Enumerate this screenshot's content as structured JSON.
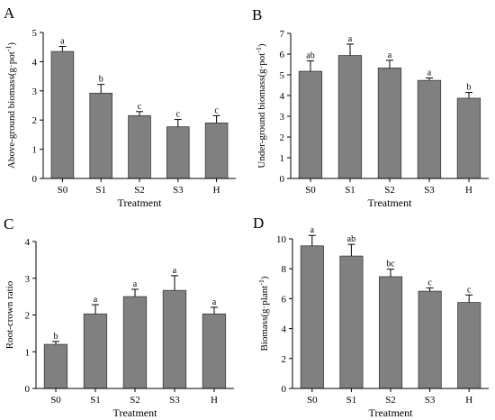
{
  "figure": {
    "bar_color": "#808080",
    "bar_stroke": "#3c3c3c",
    "axis_color": "#000000"
  },
  "chart_data": [
    {
      "panel": "A",
      "type": "bar",
      "categories": [
        "S0",
        "S1",
        "S2",
        "S3",
        "H"
      ],
      "values": [
        4.35,
        2.92,
        2.15,
        1.77,
        1.9
      ],
      "errors": [
        0.17,
        0.3,
        0.14,
        0.25,
        0.25
      ],
      "significance": [
        "a",
        "b",
        "c",
        "c",
        "c"
      ],
      "xlabel": "Treatment",
      "ylabel": "Above-ground biomass(g·pot",
      "ylabel_sup": "-1",
      "ylabel_tail": ")",
      "ylim": [
        0,
        5
      ],
      "yticks": [
        0,
        1,
        2,
        3,
        4,
        5
      ],
      "ytick_labels": [
        "0",
        "1",
        "2",
        "3",
        "4",
        "5"
      ]
    },
    {
      "panel": "B",
      "type": "bar",
      "categories": [
        "S0",
        "S1",
        "S2",
        "S3",
        "H"
      ],
      "values": [
        5.17,
        5.93,
        5.33,
        4.73,
        3.87
      ],
      "errors": [
        0.5,
        0.55,
        0.37,
        0.12,
        0.28
      ],
      "significance": [
        "ab",
        "a",
        "a",
        "a",
        "b"
      ],
      "xlabel": "Treatment",
      "ylabel": "Under-ground biomass(g·pot",
      "ylabel_sup": "-1",
      "ylabel_tail": ")",
      "ylim": [
        0,
        7
      ],
      "yticks": [
        0,
        1,
        2,
        3,
        4,
        5,
        6,
        7
      ],
      "ytick_labels": [
        "0",
        "1",
        "2",
        "3",
        "4",
        "5",
        "6",
        "7"
      ]
    },
    {
      "panel": "C",
      "type": "bar",
      "categories": [
        "S0",
        "S1",
        "S2",
        "S3",
        "H"
      ],
      "values": [
        1.2,
        2.03,
        2.5,
        2.67,
        2.03
      ],
      "errors": [
        0.08,
        0.25,
        0.2,
        0.4,
        0.18
      ],
      "significance": [
        "b",
        "a",
        "a",
        "a",
        "a"
      ],
      "xlabel": "Treatment",
      "ylabel": "Root-crown ratio",
      "ylabel_sup": "",
      "ylabel_tail": "",
      "ylim": [
        0,
        4
      ],
      "yticks": [
        0,
        1,
        2,
        3,
        4
      ],
      "ytick_labels": [
        "0",
        "1",
        "2",
        "3",
        "4"
      ]
    },
    {
      "panel": "D",
      "type": "bar",
      "categories": [
        "S0",
        "S1",
        "S2",
        "S3",
        "H"
      ],
      "values": [
        9.53,
        8.85,
        7.47,
        6.5,
        5.75
      ],
      "errors": [
        0.7,
        0.78,
        0.5,
        0.22,
        0.5
      ],
      "significance": [
        "a",
        "ab",
        "bc",
        "c",
        "c"
      ],
      "xlabel": "Treatment",
      "ylabel": "Biomass(g·plant",
      "ylabel_sup": "-1",
      "ylabel_tail": ")",
      "ylim": [
        0,
        10
      ],
      "yticks": [
        0,
        2,
        4,
        6,
        8,
        10
      ],
      "ytick_labels": [
        "0",
        "2",
        "4",
        "6",
        "8",
        "10"
      ]
    }
  ]
}
